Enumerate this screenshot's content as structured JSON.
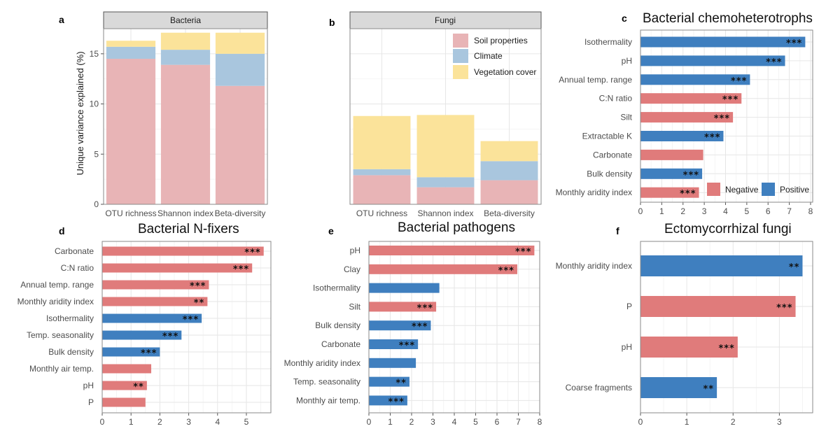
{
  "colors": {
    "soil": "#e8b4b6",
    "climate": "#a9c6de",
    "vegetation": "#fbe39a",
    "negative": "#e07b7b",
    "positive": "#3f7fbf"
  },
  "chart_data": [
    {
      "id": "a",
      "type": "bar",
      "stacked": true,
      "letter": "a",
      "strip_title": "Bacteria",
      "ylabel": "Unique variance explained (%)",
      "ylim": [
        0,
        17.5
      ],
      "yticks": [
        "0",
        "5",
        "10",
        "15"
      ],
      "categories": [
        "OTU richness",
        "Shannon index",
        "Beta-diversity"
      ],
      "series": [
        {
          "name": "Soil properties",
          "values": [
            14.5,
            13.9,
            11.8
          ]
        },
        {
          "name": "Climate",
          "values": [
            1.2,
            1.5,
            3.2
          ]
        },
        {
          "name": "Vegetation cover",
          "values": [
            0.6,
            1.7,
            2.1
          ]
        }
      ]
    },
    {
      "id": "b",
      "type": "bar",
      "stacked": true,
      "letter": "b",
      "strip_title": "Fungi",
      "ylim": [
        0,
        17.5
      ],
      "categories": [
        "OTU richness",
        "Shannon index",
        "Beta-diversity"
      ],
      "legend": [
        "Soil properties",
        "Climate",
        "Vegetation cover"
      ],
      "series": [
        {
          "name": "Soil properties",
          "values": [
            2.9,
            1.7,
            2.4
          ]
        },
        {
          "name": "Climate",
          "values": [
            0.6,
            1.0,
            1.9
          ]
        },
        {
          "name": "Vegetation cover",
          "values": [
            5.3,
            6.2,
            2.0
          ]
        }
      ]
    },
    {
      "id": "c",
      "type": "bar",
      "orientation": "horizontal",
      "letter": "c",
      "title": "Bacterial chemoheterotrophs",
      "xlim": [
        0,
        8.1
      ],
      "xticks": [
        "0",
        "1",
        "2",
        "3",
        "4",
        "5",
        "6",
        "7",
        "8"
      ],
      "legend": {
        "negative": "Negative",
        "positive": "Positive"
      },
      "bars": [
        {
          "label": "Isothermality",
          "value": 7.75,
          "sign": "positive",
          "sig": "***"
        },
        {
          "label": "pH",
          "value": 6.8,
          "sign": "positive",
          "sig": "***"
        },
        {
          "label": "Annual temp. range",
          "value": 5.15,
          "sign": "positive",
          "sig": "***"
        },
        {
          "label": "C:N ratio",
          "value": 4.75,
          "sign": "negative",
          "sig": "***"
        },
        {
          "label": "Silt",
          "value": 4.35,
          "sign": "negative",
          "sig": "***"
        },
        {
          "label": "Extractable K",
          "value": 3.9,
          "sign": "positive",
          "sig": "***"
        },
        {
          "label": "Carbonate",
          "value": 2.95,
          "sign": "negative",
          "sig": ""
        },
        {
          "label": "Bulk density",
          "value": 2.9,
          "sign": "positive",
          "sig": "***"
        },
        {
          "label": "Monthly aridity index",
          "value": 2.75,
          "sign": "negative",
          "sig": "***"
        }
      ]
    },
    {
      "id": "d",
      "type": "bar",
      "orientation": "horizontal",
      "letter": "d",
      "title": "Bacterial N-fixers",
      "xlim": [
        0,
        5.85
      ],
      "xticks": [
        "0",
        "1",
        "2",
        "3",
        "4",
        "5"
      ],
      "bars": [
        {
          "label": "Carbonate",
          "value": 5.6,
          "sign": "negative",
          "sig": "***"
        },
        {
          "label": "C:N ratio",
          "value": 5.2,
          "sign": "negative",
          "sig": "***"
        },
        {
          "label": "Annual temp. range",
          "value": 3.7,
          "sign": "negative",
          "sig": "***"
        },
        {
          "label": "Monthly aridity index",
          "value": 3.65,
          "sign": "negative",
          "sig": "**"
        },
        {
          "label": "Isothermality",
          "value": 3.45,
          "sign": "positive",
          "sig": "***"
        },
        {
          "label": "Temp. seasonality",
          "value": 2.75,
          "sign": "positive",
          "sig": "***"
        },
        {
          "label": "Bulk density",
          "value": 2.0,
          "sign": "positive",
          "sig": "***"
        },
        {
          "label": "Monthly air temp.",
          "value": 1.7,
          "sign": "negative",
          "sig": ""
        },
        {
          "label": "pH",
          "value": 1.55,
          "sign": "negative",
          "sig": "**"
        },
        {
          "label": "P",
          "value": 1.5,
          "sign": "negative",
          "sig": ""
        }
      ]
    },
    {
      "id": "e",
      "type": "bar",
      "orientation": "horizontal",
      "letter": "e",
      "title": "Bacterial pathogens",
      "xlim": [
        0,
        8.0
      ],
      "xticks": [
        "0",
        "1",
        "2",
        "3",
        "4",
        "5",
        "6",
        "7",
        "8"
      ],
      "bars": [
        {
          "label": "pH",
          "value": 7.75,
          "sign": "negative",
          "sig": "***"
        },
        {
          "label": "Clay",
          "value": 6.95,
          "sign": "negative",
          "sig": "***"
        },
        {
          "label": "Isothermality",
          "value": 3.3,
          "sign": "positive",
          "sig": ""
        },
        {
          "label": "Silt",
          "value": 3.15,
          "sign": "negative",
          "sig": "***"
        },
        {
          "label": "Bulk density",
          "value": 2.9,
          "sign": "positive",
          "sig": "***"
        },
        {
          "label": "Carbonate",
          "value": 2.3,
          "sign": "positive",
          "sig": "***"
        },
        {
          "label": "Monthly aridity index",
          "value": 2.2,
          "sign": "positive",
          "sig": ""
        },
        {
          "label": "Temp. seasonality",
          "value": 1.9,
          "sign": "positive",
          "sig": "**"
        },
        {
          "label": "Monthly air temp.",
          "value": 1.8,
          "sign": "positive",
          "sig": "***"
        }
      ]
    },
    {
      "id": "f",
      "type": "bar",
      "orientation": "horizontal",
      "letter": "f",
      "title": "Ectomycorrhizal fungi",
      "xlim": [
        0,
        3.72
      ],
      "xticks": [
        "0",
        "1",
        "2",
        "3"
      ],
      "bars": [
        {
          "label": "Monthly aridity index",
          "value": 3.5,
          "sign": "positive",
          "sig": "**"
        },
        {
          "label": "P",
          "value": 3.35,
          "sign": "negative",
          "sig": "***"
        },
        {
          "label": "pH",
          "value": 2.1,
          "sign": "negative",
          "sig": "***"
        },
        {
          "label": "Coarse fragments",
          "value": 1.65,
          "sign": "positive",
          "sig": "**"
        }
      ]
    }
  ]
}
